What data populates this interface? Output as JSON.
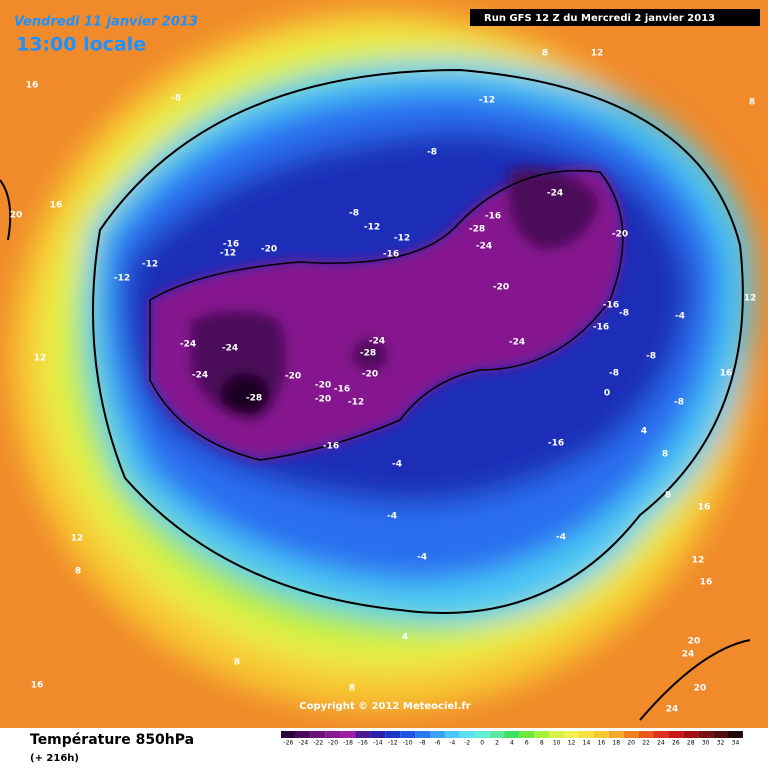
{
  "header": {
    "date": "Vendredi 11 janvier 2013",
    "time": "13:00 locale",
    "run": "Run GFS 12 Z du Mercredi 2 janvier 2013"
  },
  "map": {
    "contour_labels": [
      16,
      -8,
      -12,
      12,
      8,
      8,
      -8,
      20,
      16,
      -8,
      -12,
      -16,
      -24,
      -28,
      -24,
      -20,
      -16,
      -12,
      -20,
      -12,
      -16,
      -12,
      -12,
      -20,
      -16,
      -8,
      -16,
      -4,
      12,
      12,
      -24,
      -24,
      -24,
      -28,
      -24,
      -8,
      16,
      -24,
      -20,
      -20,
      -20,
      -16,
      -28,
      -20,
      -12,
      -8,
      0,
      -8,
      4,
      -16,
      -16,
      8,
      -4,
      8,
      16,
      -4,
      12,
      -4,
      12,
      8,
      -4,
      16,
      4,
      20,
      24,
      8,
      16,
      8,
      20,
      24
    ],
    "copyright": "Copyright © 2012 Meteociel.fr"
  },
  "footer": {
    "title": "Température 850hPa",
    "subtitle": "(+ 216h)"
  },
  "scale": {
    "ticks": [
      -26,
      -24,
      -22,
      -20,
      -18,
      -16,
      -14,
      -12,
      -10,
      -8,
      -6,
      -4,
      -2,
      0,
      2,
      4,
      6,
      8,
      10,
      12,
      14,
      16,
      18,
      20,
      22,
      24,
      26,
      28,
      30,
      32,
      34
    ],
    "colors": [
      "#2a0035",
      "#4b0a5a",
      "#6a1278",
      "#85198f",
      "#9c1fa6",
      "#4a1a8e",
      "#2a22a8",
      "#1a38c8",
      "#1e55e0",
      "#2a78f0",
      "#3aa0f5",
      "#48c8f5",
      "#5ae0f0",
      "#60f0d8",
      "#5ae8a0",
      "#40e060",
      "#70e840",
      "#a8f040",
      "#d8f048",
      "#f0f050",
      "#f8e040",
      "#f8c830",
      "#f8a828",
      "#f08020",
      "#e85818",
      "#e03020",
      "#c81818",
      "#a01010",
      "#781010",
      "#501010",
      "#200808"
    ]
  }
}
